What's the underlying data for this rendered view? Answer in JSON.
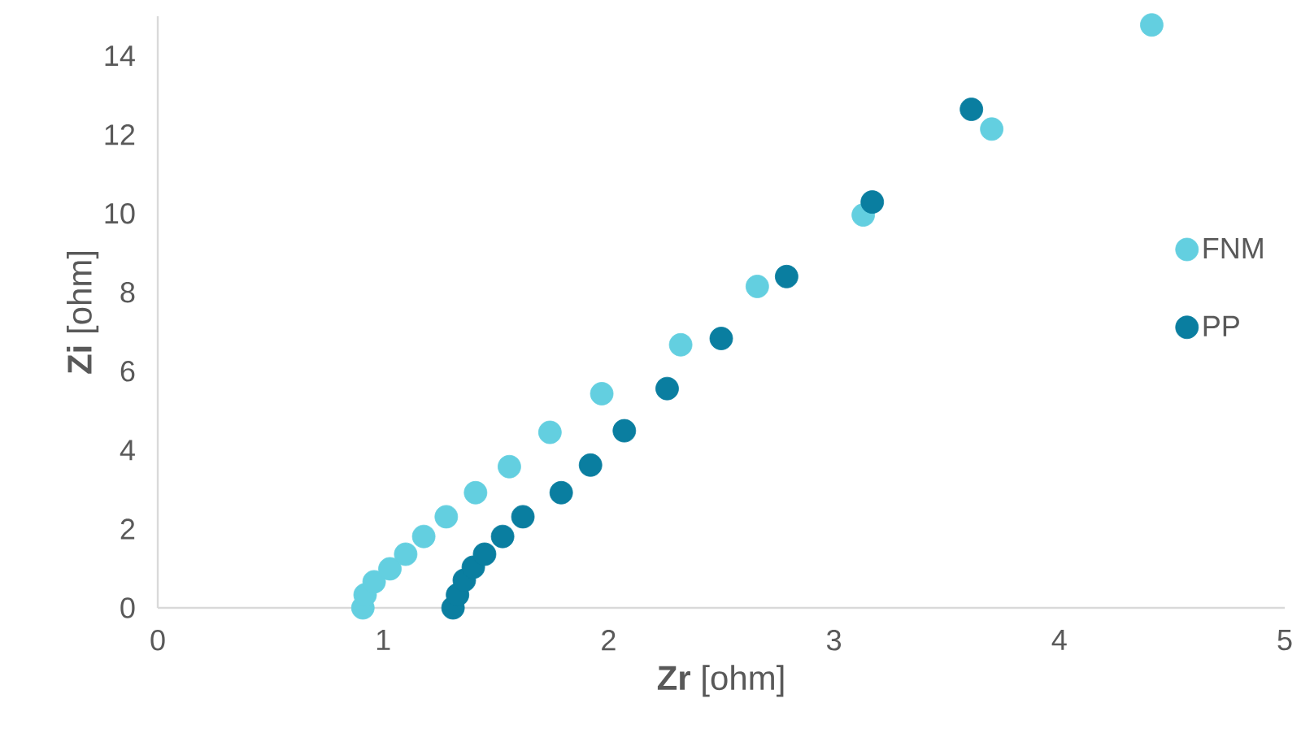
{
  "chart_data": {
    "type": "scatter",
    "xlabel": "**Zr** [ohm]",
    "ylabel": "**Zi** [ohm]",
    "xlim": [
      0,
      5
    ],
    "xticks": [
      0,
      1,
      2,
      3,
      4,
      5
    ],
    "ylim": [
      0,
      15
    ],
    "yticks": [
      0,
      2,
      4,
      6,
      8,
      10,
      12,
      14
    ],
    "grid": false,
    "legend": "right",
    "marker": "circle",
    "series": [
      {
        "name": "FNM",
        "color": "#63cfe0",
        "x": [
          0.91,
          0.92,
          0.96,
          1.03,
          1.1,
          1.18,
          1.28,
          1.41,
          1.56,
          1.74,
          1.97,
          2.32,
          2.66,
          3.13,
          3.7,
          4.41
        ],
        "values": [
          0,
          0.33,
          0.66,
          0.99,
          1.36,
          1.81,
          2.31,
          2.92,
          3.58,
          4.45,
          5.43,
          6.67,
          8.15,
          9.96,
          12.14,
          14.78
        ]
      },
      {
        "name": "PP",
        "color": "#0a7ea0",
        "x": [
          1.31,
          1.33,
          1.36,
          1.4,
          1.45,
          1.53,
          1.62,
          1.79,
          1.92,
          2.07,
          2.26,
          2.5,
          2.79,
          3.17,
          3.61
        ],
        "values": [
          0,
          0.33,
          0.7,
          1.03,
          1.36,
          1.81,
          2.31,
          2.92,
          3.62,
          4.49,
          5.56,
          6.83,
          8.4,
          10.29,
          12.64
        ]
      }
    ]
  }
}
